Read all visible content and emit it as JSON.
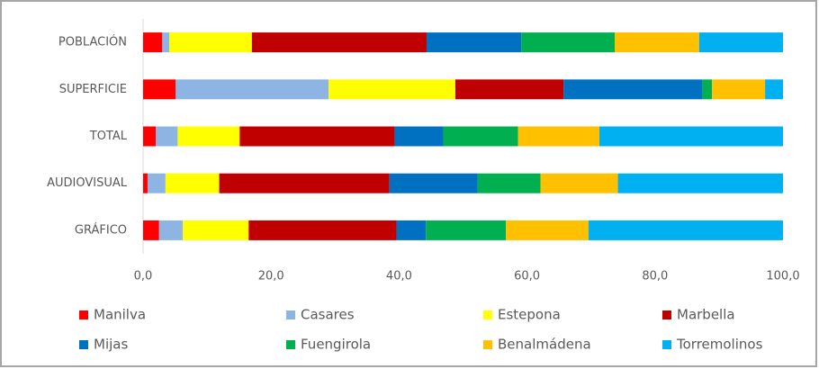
{
  "chart_data": {
    "type": "stacked_bar_horizontal",
    "categories": [
      "POBLACIÓN",
      "SUPERFICIE",
      "TOTAL",
      "AUDIOVISUAL",
      "GRÁFICO"
    ],
    "series": [
      {
        "name": "Manilva",
        "color": "#ff0000",
        "values": [
          3.0,
          5.1,
          2.0,
          0.7,
          2.5
        ]
      },
      {
        "name": "Casares",
        "color": "#8db4e2",
        "values": [
          1.1,
          23.9,
          3.4,
          2.8,
          3.7
        ]
      },
      {
        "name": "Estepona",
        "color": "#ffff00",
        "values": [
          12.9,
          19.8,
          9.7,
          8.4,
          10.3
        ]
      },
      {
        "name": "Marbella",
        "color": "#c00000",
        "values": [
          27.3,
          16.9,
          24.2,
          26.6,
          23.1
        ]
      },
      {
        "name": "Mijas",
        "color": "#0070c0",
        "values": [
          14.8,
          21.7,
          7.6,
          13.8,
          4.6
        ]
      },
      {
        "name": "Fuengirola",
        "color": "#00b050",
        "values": [
          14.6,
          1.5,
          11.7,
          9.8,
          12.5
        ]
      },
      {
        "name": "Benalmádena",
        "color": "#ffc000",
        "values": [
          13.2,
          8.3,
          12.7,
          12.1,
          12.9
        ]
      },
      {
        "name": "Torremolinos",
        "color": "#00b0f0",
        "values": [
          13.1,
          2.8,
          28.7,
          25.8,
          30.4
        ]
      }
    ],
    "xlim": [
      0,
      100
    ],
    "xticks": [
      {
        "value": 0,
        "label": "0,0"
      },
      {
        "value": 20,
        "label": "20,0"
      },
      {
        "value": 40,
        "label": "40,0"
      },
      {
        "value": 60,
        "label": "60,0"
      },
      {
        "value": 80,
        "label": "80,0"
      },
      {
        "value": 100,
        "label": "100,0"
      }
    ],
    "grid": false,
    "legend": "bottom"
  }
}
